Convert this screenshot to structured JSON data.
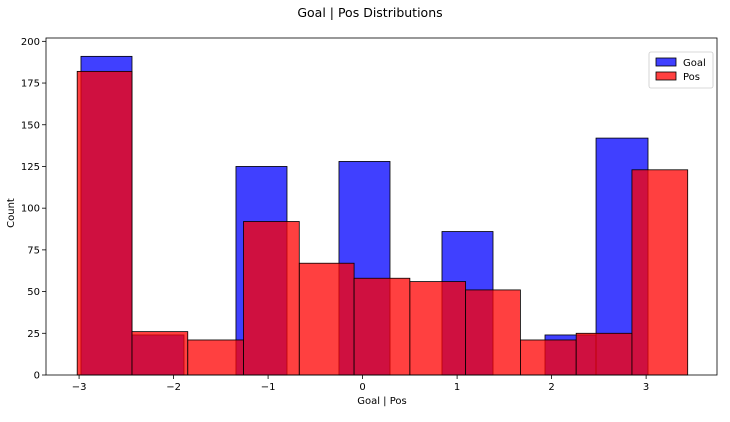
{
  "chart_data": {
    "type": "bar",
    "title": "Goal | Pos Distributions",
    "xlabel": "Goal | Pos",
    "ylabel": "Count",
    "xlim": [
      -3.35,
      3.75
    ],
    "ylim": [
      0,
      202
    ],
    "x_ticks": [
      -3,
      -2,
      -1,
      0,
      1,
      2,
      3
    ],
    "x_tick_labels": [
      "−3",
      "−2",
      "−1",
      "0",
      "1",
      "2",
      "3"
    ],
    "y_ticks": [
      0,
      25,
      50,
      75,
      100,
      125,
      150,
      175,
      200
    ],
    "y_tick_labels": [
      "0",
      "25",
      "50",
      "75",
      "100",
      "125",
      "150",
      "175",
      "200"
    ],
    "grid": false,
    "legend_position": "top-right",
    "series": [
      {
        "name": "Goal",
        "color": "#0000ff",
        "bins": [
          {
            "x0": -2.98,
            "x1": -2.44,
            "count": 191
          },
          {
            "x0": -2.44,
            "x1": -1.89,
            "count": 24
          },
          {
            "x0": -1.89,
            "x1": -1.34,
            "count": 0
          },
          {
            "x0": -1.34,
            "x1": -0.8,
            "count": 125
          },
          {
            "x0": -0.8,
            "x1": -0.25,
            "count": 0
          },
          {
            "x0": -0.25,
            "x1": 0.29,
            "count": 128
          },
          {
            "x0": 0.29,
            "x1": 0.84,
            "count": 0
          },
          {
            "x0": 0.84,
            "x1": 1.38,
            "count": 86
          },
          {
            "x0": 1.38,
            "x1": 1.93,
            "count": 0
          },
          {
            "x0": 1.93,
            "x1": 2.47,
            "count": 24
          },
          {
            "x0": 2.47,
            "x1": 3.02,
            "count": 142
          }
        ]
      },
      {
        "name": "Pos",
        "color": "#ff0000",
        "bins": [
          {
            "x0": -3.02,
            "x1": -2.44,
            "count": 182
          },
          {
            "x0": -2.44,
            "x1": -1.85,
            "count": 26
          },
          {
            "x0": -1.85,
            "x1": -1.26,
            "count": 21
          },
          {
            "x0": -1.26,
            "x1": -0.67,
            "count": 92
          },
          {
            "x0": -0.67,
            "x1": -0.09,
            "count": 67
          },
          {
            "x0": -0.09,
            "x1": 0.5,
            "count": 58
          },
          {
            "x0": 0.5,
            "x1": 1.09,
            "count": 56
          },
          {
            "x0": 1.09,
            "x1": 1.67,
            "count": 51
          },
          {
            "x0": 1.67,
            "x1": 2.26,
            "count": 21
          },
          {
            "x0": 2.26,
            "x1": 2.85,
            "count": 25
          },
          {
            "x0": 2.85,
            "x1": 3.44,
            "count": 123
          }
        ]
      }
    ]
  }
}
